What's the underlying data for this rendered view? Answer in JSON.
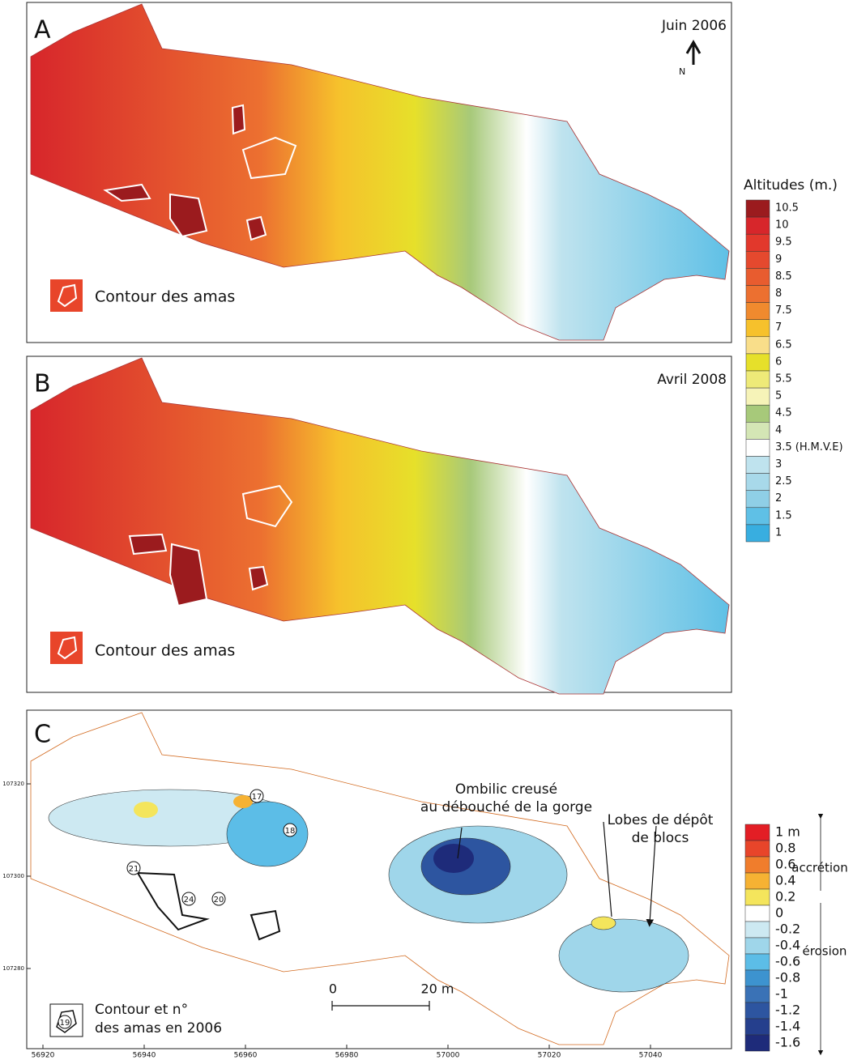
{
  "panels": [
    {
      "letter": "A",
      "date": "Juin 2006",
      "north": "N",
      "legend_label": "Contour des amas"
    },
    {
      "letter": "B",
      "date": "Avril 2008",
      "legend_label": "Contour des amas"
    }
  ],
  "altitude_legend": {
    "title": "Altitudes (m.)",
    "entries": [
      {
        "label": "10.5",
        "color": "#9b1b1e"
      },
      {
        "label": "10",
        "color": "#d7262b"
      },
      {
        "label": "9.5",
        "color": "#e2382c"
      },
      {
        "label": "9",
        "color": "#e5492e"
      },
      {
        "label": "8.5",
        "color": "#e85c2f"
      },
      {
        "label": "8",
        "color": "#ec7030"
      },
      {
        "label": "7.5",
        "color": "#f08a2e"
      },
      {
        "label": "7",
        "color": "#f6c12c"
      },
      {
        "label": "6.5",
        "color": "#f9de8a"
      },
      {
        "label": "6",
        "color": "#e6e02a"
      },
      {
        "label": "5.5",
        "color": "#eeea78"
      },
      {
        "label": "5",
        "color": "#f6f3b8"
      },
      {
        "label": "4.5",
        "color": "#a7c97a"
      },
      {
        "label": "4",
        "color": "#d4e6b5"
      },
      {
        "label": "3.5 (H.M.V.E)",
        "color": "#ffffff"
      },
      {
        "label": "3",
        "color": "#bfe3ee"
      },
      {
        "label": "2.5",
        "color": "#a8d9ea"
      },
      {
        "label": "2",
        "color": "#8fcfe6"
      },
      {
        "label": "1.5",
        "color": "#5fc0e6"
      },
      {
        "label": "1",
        "color": "#38aee0"
      }
    ]
  },
  "panel_c": {
    "letter": "C",
    "annotation_gorge": [
      "Ombilic creusé",
      "au débouché de la gorge"
    ],
    "annotation_lobes": [
      "Lobes de dépôt",
      "de blocs"
    ],
    "legend_label": [
      "Contour et n°",
      "des amas en 2006"
    ],
    "scale": [
      "0",
      "20 m"
    ],
    "amas_numbers": [
      "17",
      "18",
      "21",
      "24",
      "20",
      "19"
    ],
    "x_axis": [
      "56920",
      "56940",
      "56960",
      "56980",
      "57000",
      "57020",
      "57040"
    ],
    "y_axis": [
      "107320",
      "107300",
      "107280"
    ],
    "change_legend": {
      "accretion": "accrétion",
      "erosion": "érosion",
      "entries": [
        {
          "label": "1 m",
          "color": "#e31e25"
        },
        {
          "label": "0.8",
          "color": "#e8452a"
        },
        {
          "label": "0.6",
          "color": "#f07d2c"
        },
        {
          "label": "0.4",
          "color": "#f6b233"
        },
        {
          "label": "0.2",
          "color": "#f4e55c"
        },
        {
          "label": "0",
          "color": "#ffffff"
        },
        {
          "label": "-0.2",
          "color": "#cde9f2"
        },
        {
          "label": "-0.4",
          "color": "#9fd6ea"
        },
        {
          "label": "-0.6",
          "color": "#5cbde7"
        },
        {
          "label": "-0.8",
          "color": "#3d93cf"
        },
        {
          "label": "-1",
          "color": "#3a72b6"
        },
        {
          "label": "-1.2",
          "color": "#2d55a0"
        },
        {
          "label": "-1.4",
          "color": "#253f8d"
        },
        {
          "label": "-1.6",
          "color": "#1e2b7a"
        }
      ]
    }
  }
}
